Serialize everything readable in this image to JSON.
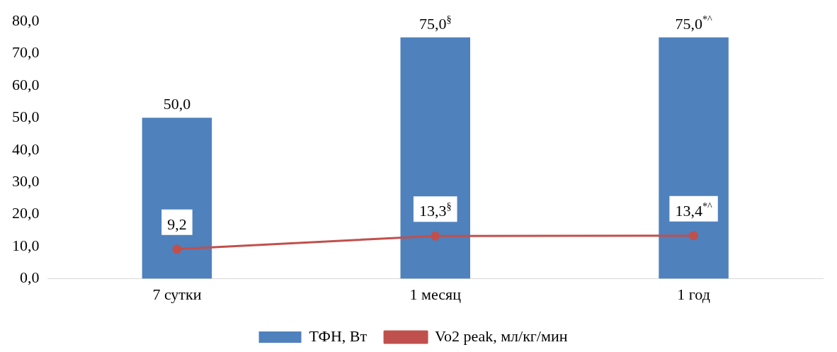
{
  "chart_data": {
    "type": "bar",
    "categories": [
      "7 сутки",
      "1 месяц",
      "1 год"
    ],
    "series": [
      {
        "name": "ТФН, Вт",
        "color": "#4f81bd",
        "values": [
          50.0,
          75.0,
          75.0
        ],
        "value_labels": [
          "50,0",
          "75,0$^{§}$",
          "75,0$^{*^}$"
        ]
      },
      {
        "name": "Vo2 peak, мл/кг/мин",
        "type": "line",
        "color": "#c0504d",
        "values": [
          9.2,
          13.3,
          13.4
        ],
        "value_labels": [
          "9,2",
          "13,3$^{§}$",
          "13,4$^{*^}$"
        ],
        "marker": "circle",
        "line_style": "solid"
      }
    ],
    "ylim": [
      0,
      80
    ],
    "yticks": [
      {
        "value": 0,
        "label": "0,0"
      },
      {
        "value": 10,
        "label": "10,0"
      },
      {
        "value": 20,
        "label": "20,0"
      },
      {
        "value": 30,
        "label": "30,0"
      },
      {
        "value": 40,
        "label": "40,0"
      },
      {
        "value": 50,
        "label": "50,0"
      },
      {
        "value": 60,
        "label": "60,0"
      },
      {
        "value": 70,
        "label": "70,0"
      },
      {
        "value": 80,
        "label": "80,0"
      }
    ],
    "grid": false,
    "legend": "bottom"
  }
}
